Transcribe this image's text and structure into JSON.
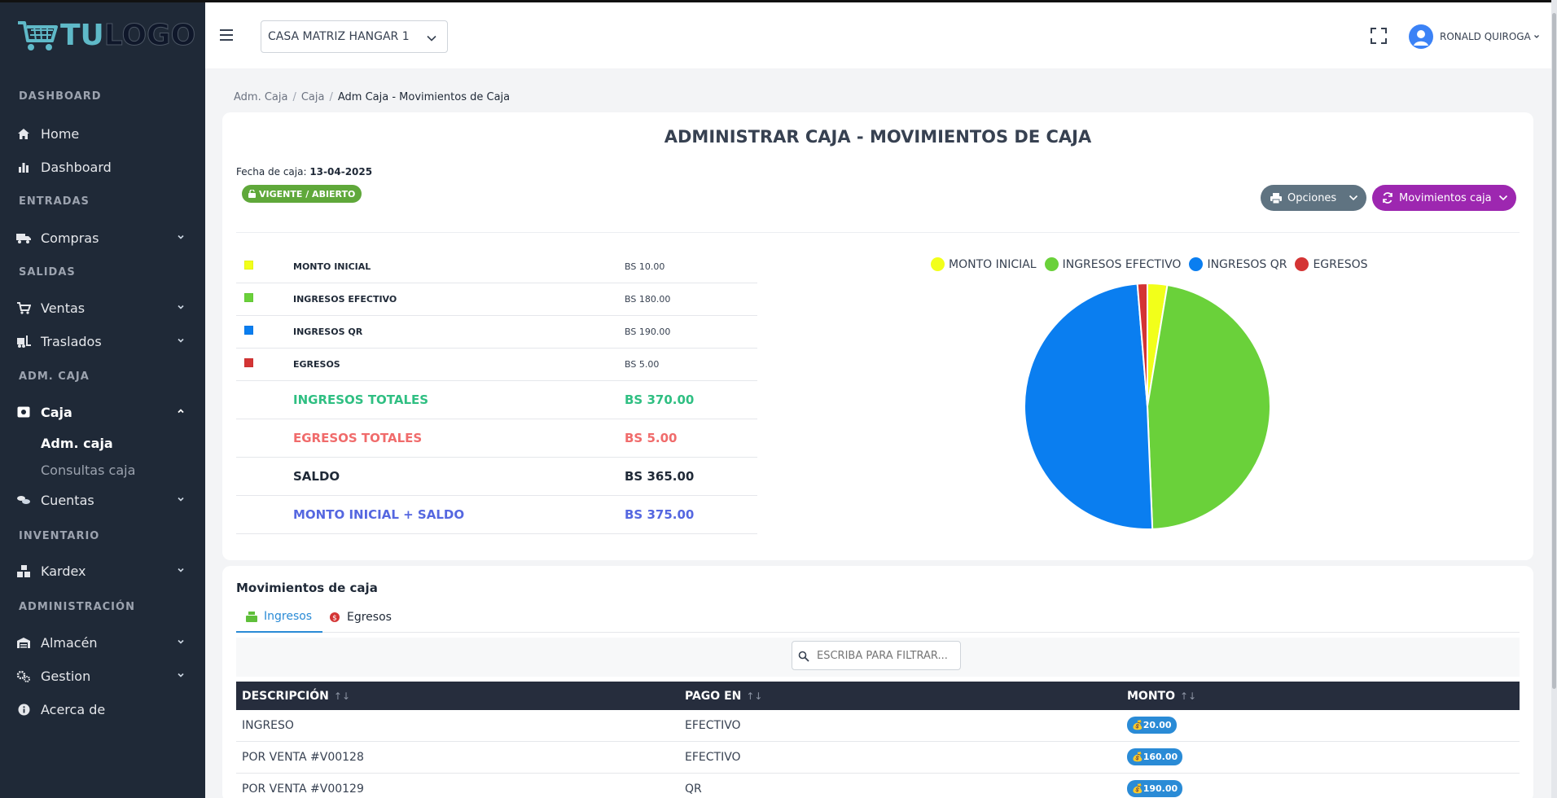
{
  "logo": {
    "part1": "TU",
    "part2": "LOGO"
  },
  "sidebar": {
    "sections": [
      "DASHBOARD",
      "ENTRADAS",
      "SALIDAS",
      "ADM. CAJA",
      "INVENTARIO",
      "ADMINISTRACIÓN"
    ],
    "items": [
      {
        "label": "Home",
        "icon": "home-icon"
      },
      {
        "label": "Dashboard",
        "icon": "bar-chart-icon"
      },
      {
        "label": "Compras",
        "icon": "truck-icon"
      },
      {
        "label": "Ventas",
        "icon": "cart-icon"
      },
      {
        "label": "Traslados",
        "icon": "forklift-icon"
      },
      {
        "label": "Caja",
        "icon": "cash-register-icon"
      },
      {
        "label": "Cuentas",
        "icon": "coins-icon"
      },
      {
        "label": "Kardex",
        "icon": "boxes-icon"
      },
      {
        "label": "Almacén",
        "icon": "warehouse-icon"
      },
      {
        "label": "Gestion",
        "icon": "gears-icon"
      },
      {
        "label": "Acerca de",
        "icon": "info-icon"
      }
    ],
    "caja_sub": [
      "Adm. caja",
      "Consultas caja"
    ]
  },
  "topbar": {
    "branch": "CASA MATRIZ HANGAR 1",
    "user": "RONALD QUIROGA"
  },
  "breadcrumb": [
    "Adm. Caja",
    "Caja",
    "Adm Caja - Movimientos de Caja"
  ],
  "main": {
    "title": "ADMINISTRAR CAJA - MOVIMIENTOS DE CAJA",
    "fecha_label": "Fecha de caja:",
    "fecha_value": "13-04-2025",
    "status": "VIGENTE / ABIERTO",
    "btn_opciones": "Opciones",
    "btn_movimientos": "Movimientos caja"
  },
  "summary": {
    "rows": [
      {
        "label": "MONTO INICIAL",
        "value": "BS 10.00",
        "color": "#f2ff1a"
      },
      {
        "label": "INGRESOS EFECTIVO",
        "value": "BS 180.00",
        "color": "#6ad13a"
      },
      {
        "label": "INGRESOS QR",
        "value": "BS 190.00",
        "color": "#0a7ef0"
      },
      {
        "label": "EGRESOS",
        "value": "BS 5.00",
        "color": "#d43434"
      }
    ],
    "totals": [
      {
        "label": "INGRESOS TOTALES",
        "value": "BS 370.00",
        "color": "#2fbf82"
      },
      {
        "label": "EGRESOS TOTALES",
        "value": "BS 5.00",
        "color": "#f06b6b"
      },
      {
        "label": "SALDO",
        "value": "BS 365.00",
        "color": "#1f2937"
      },
      {
        "label": "MONTO INICIAL + SALDO",
        "value": "BS 375.00",
        "color": "#5567e0"
      }
    ]
  },
  "chart_data": {
    "type": "pie",
    "title": "",
    "legend_position": "top",
    "categories": [
      "MONTO INICIAL",
      "INGRESOS EFECTIVO",
      "INGRESOS QR",
      "EGRESOS"
    ],
    "values": [
      10,
      180,
      190,
      5
    ],
    "colors": [
      "#f2ff1a",
      "#6ad13a",
      "#0a7ef0",
      "#d43434"
    ]
  },
  "movimientos": {
    "title": "Movimientos de caja",
    "tabs": [
      "Ingresos",
      "Egresos"
    ],
    "filter_placeholder": "ESCRIBA PARA FILTRAR...",
    "columns": [
      "DESCRIPCIÓN",
      "PAGO EN",
      "MONTO"
    ],
    "rows": [
      {
        "descripcion": "INGRESO",
        "pago": "EFECTIVO",
        "monto": "20.00"
      },
      {
        "descripcion": "POR VENTA #V00128",
        "pago": "EFECTIVO",
        "monto": "160.00"
      },
      {
        "descripcion": "POR VENTA #V00129",
        "pago": "QR",
        "monto": "190.00"
      }
    ]
  }
}
